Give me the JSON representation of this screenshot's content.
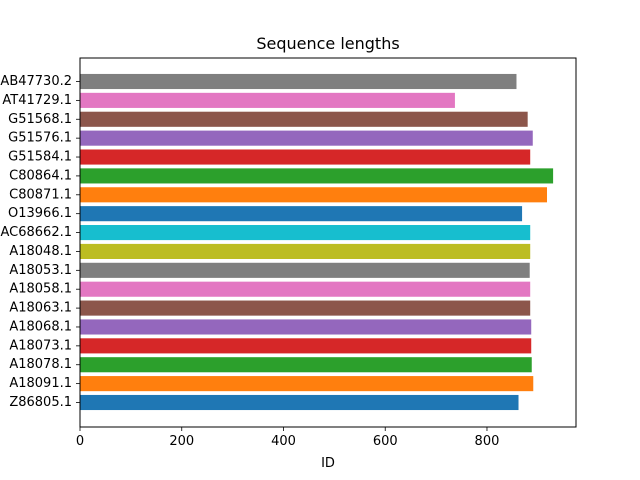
{
  "chart_data": {
    "type": "bar",
    "orientation": "horizontal",
    "title": "Sequence lengths",
    "xlabel": "ID",
    "ylabel": "",
    "xlim": [
      0,
      975
    ],
    "xticks": [
      0,
      200,
      400,
      600,
      800
    ],
    "grid": false,
    "categories": [
      "AB47730.2",
      "AT41729.1",
      "G51568.1",
      "G51576.1",
      "G51584.1",
      "C80864.1",
      "C80871.1",
      "O13966.1",
      "AC68662.1",
      "A18048.1",
      "A18053.1",
      "A18058.1",
      "A18063.1",
      "A18068.1",
      "A18073.1",
      "A18078.1",
      "A18091.1",
      "Z86805.1"
    ],
    "values": [
      858,
      737,
      880,
      890,
      885,
      930,
      918,
      869,
      885,
      885,
      884,
      885,
      885,
      887,
      887,
      888,
      891,
      862
    ],
    "colors": [
      "#7f7f7f",
      "#e377c2",
      "#8c564b",
      "#9467bd",
      "#d62728",
      "#2ca02c",
      "#ff7f0e",
      "#1f77b4",
      "#17becf",
      "#bcbd22",
      "#7f7f7f",
      "#e377c2",
      "#8c564b",
      "#9467bd",
      "#d62728",
      "#2ca02c",
      "#ff7f0e",
      "#1f77b4"
    ]
  }
}
